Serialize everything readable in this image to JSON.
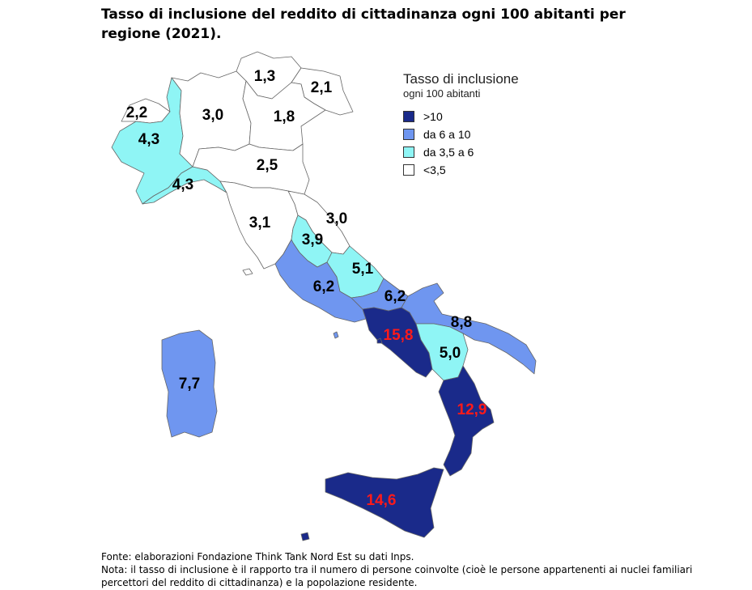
{
  "title": "Tasso di inclusione del reddito di cittadinanza ogni 100 abitanti per regione (2021).",
  "legend": {
    "title": "Tasso di inclusione",
    "subtitle": "ogni 100 abitanti",
    "items": [
      {
        "label": ">10",
        "color": "#1a2a8a"
      },
      {
        "label": "da 6 a 10",
        "color": "#6f96f0"
      },
      {
        "label": "da 3,5 a 6",
        "color": "#8ff5f5"
      },
      {
        "label": "<3,5",
        "color": "#ffffff"
      }
    ]
  },
  "region_values": {
    "valle_daosta": "2,2",
    "piemonte": "4,3",
    "lombardia": "3,0",
    "trentino": "1,3",
    "friuli": "2,1",
    "veneto": "1,8",
    "emilia_romagna": "2,5",
    "liguria": "4,3",
    "toscana": "3,1",
    "marche": "3,0",
    "umbria": "3,9",
    "abruzzo": "5,1",
    "lazio": "6,2",
    "molise": "6,2",
    "campania": "15,8",
    "puglia": "8,8",
    "basilicata": "5,0",
    "calabria": "12,9",
    "sicilia": "14,6",
    "sardegna": "7,7"
  },
  "footer": {
    "source": "Fonte: elaborazioni Fondazione Think Tank Nord Est su dati Inps.",
    "note": "Nota: il tasso di inclusione è il rapporto tra il numero di persone coinvolte (cioè le persone appartenenti ai nuclei familiari percettori del reddito di cittadinanza) e la popolazione residente."
  }
}
